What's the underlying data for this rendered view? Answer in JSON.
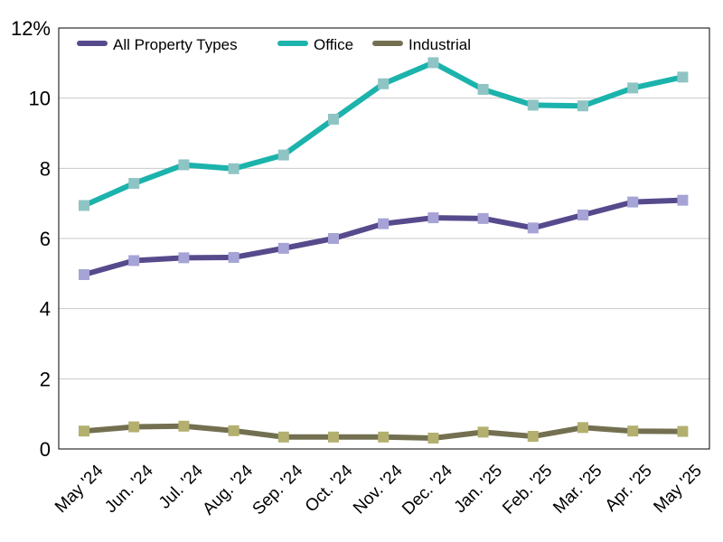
{
  "chart_data": {
    "type": "line",
    "title": "",
    "xlabel": "",
    "ylabel": "",
    "categories": [
      "May '24",
      "Jun. '24",
      "Jul. '24",
      "Aug. '24",
      "Sep. '24",
      "Oct. '24",
      "Nov. '24",
      "Dec. '24",
      "Jan. '25",
      "Feb. '25",
      "Mar. '25",
      "Apr. '25",
      "May '25"
    ],
    "ylim": [
      0,
      12
    ],
    "yticks": [
      0,
      2,
      4,
      6,
      8,
      10,
      12
    ],
    "ytick_labels": [
      "0",
      "2",
      "4",
      "6",
      "8",
      "10",
      "12%"
    ],
    "grid": true,
    "legend_position": "top-left",
    "series": [
      {
        "name": "All Property Types",
        "color": "#574a8c",
        "marker_color": "#a6a3d6",
        "values": [
          4.97,
          5.37,
          5.45,
          5.46,
          5.72,
          6.0,
          6.42,
          6.59,
          6.57,
          6.3,
          6.67,
          7.04,
          7.09
        ]
      },
      {
        "name": "Office",
        "color": "#1bb3ac",
        "marker_color": "#8fc4c4",
        "values": [
          6.94,
          7.57,
          8.1,
          7.99,
          8.38,
          9.4,
          10.41,
          11.01,
          10.25,
          9.8,
          9.78,
          10.29,
          10.6
        ]
      },
      {
        "name": "Industrial",
        "color": "#737051",
        "marker_color": "#b3af6f",
        "values": [
          0.51,
          0.63,
          0.65,
          0.52,
          0.34,
          0.34,
          0.34,
          0.31,
          0.48,
          0.36,
          0.61,
          0.51,
          0.5
        ]
      }
    ]
  }
}
